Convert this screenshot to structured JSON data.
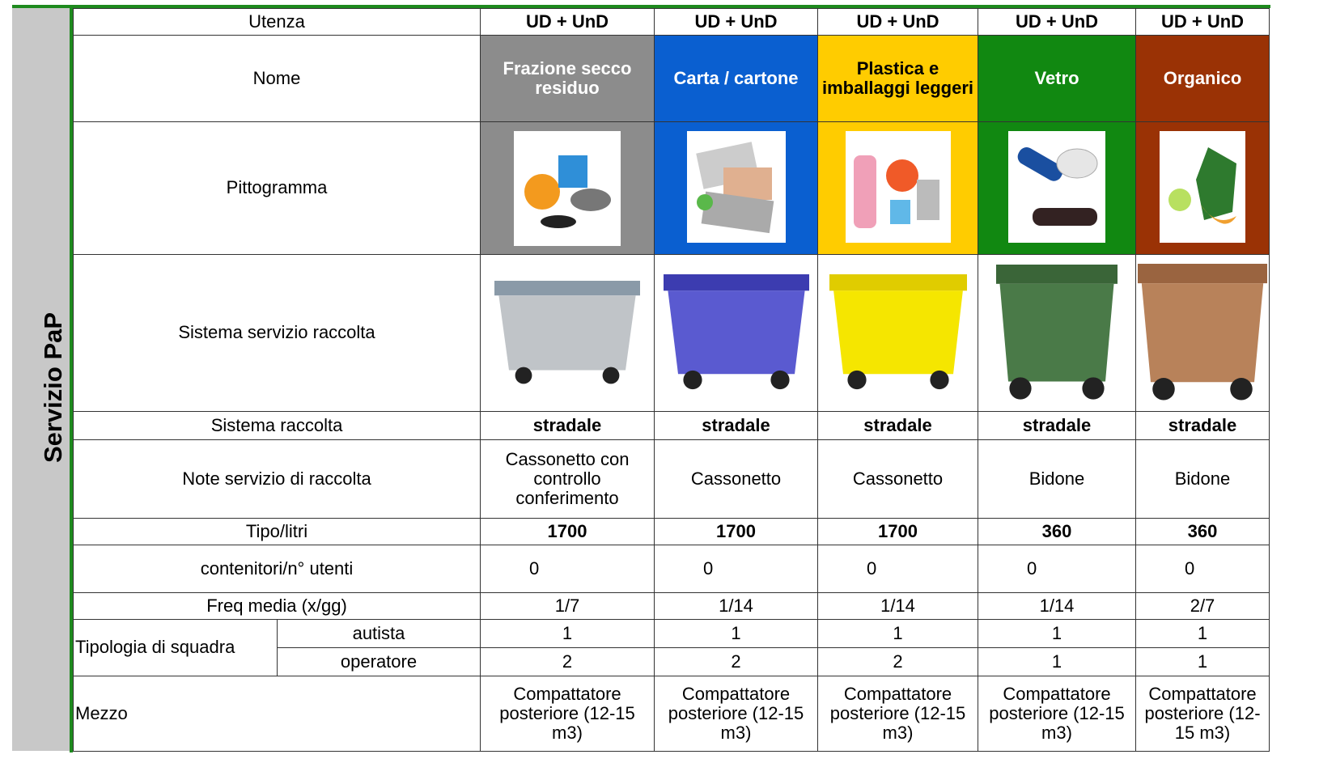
{
  "side_label": "Servizio PaP",
  "table": {
    "row_labels": [
      "Utenza",
      "Nome",
      "Pittogramma",
      "Sistema servizio raccolta",
      "Sistema raccolta",
      "Note servizio di raccolta",
      "Tipo/litri",
      "contenitori/n° utenti",
      "Freq media (x/gg)",
      "Tipologia di squadra",
      "Mezzo"
    ],
    "squadra_roles": [
      "autista",
      "operatore"
    ],
    "columns": [
      {
        "utenza": "UD + UnD",
        "nome": "Frazione secco residuo",
        "sistema_raccolta": "stradale",
        "note": "Cassonetto con controllo conferimento",
        "tipo_litri": 1700,
        "contenitori": 0,
        "freq": "1/7",
        "autista": 1,
        "operatore": 2,
        "mezzo": "Compattatore posteriore (12-15 m3)"
      },
      {
        "utenza": "UD + UnD",
        "nome": "Carta / cartone",
        "sistema_raccolta": "stradale",
        "note": "Cassonetto",
        "tipo_litri": 1700,
        "contenitori": 0,
        "freq": "1/14",
        "autista": 1,
        "operatore": 2,
        "mezzo": "Compattatore posteriore (12-15 m3)"
      },
      {
        "utenza": "UD + UnD",
        "nome": "Plastica e imballaggi leggeri",
        "sistema_raccolta": "stradale",
        "note": "Cassonetto",
        "tipo_litri": 1700,
        "contenitori": 0,
        "freq": "1/14",
        "autista": 1,
        "operatore": 2,
        "mezzo": "Compattatore posteriore (12-15 m3)"
      },
      {
        "utenza": "UD + UnD",
        "nome": "Vetro",
        "sistema_raccolta": "stradale",
        "note": "Bidone",
        "tipo_litri": 360,
        "contenitori": 0,
        "freq": "1/14",
        "autista": 1,
        "operatore": 1,
        "mezzo": "Compattatore posteriore (12-15 m3)"
      },
      {
        "utenza": "UD + UnD",
        "nome": "Organico",
        "sistema_raccolta": "stradale",
        "note": "Bidone",
        "tipo_litri": 360,
        "contenitori": 0,
        "freq": "2/7",
        "autista": 1,
        "operatore": 1,
        "mezzo": "Compattatore posteriore (12-15 m3)"
      }
    ]
  }
}
